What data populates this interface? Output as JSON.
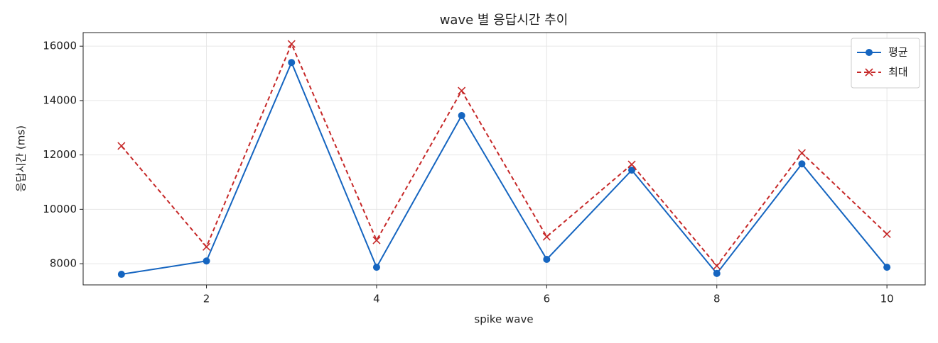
{
  "chart_data": {
    "type": "line",
    "title": "wave 별 응답시간 추이",
    "x_label": "spike wave",
    "y_label": "응답시간 (ms)",
    "x": [
      1,
      2,
      3,
      4,
      5,
      6,
      7,
      8,
      9,
      10
    ],
    "series": [
      {
        "name": "평균",
        "color": "#1565c0",
        "marker": "o",
        "dash": false,
        "values": [
          7610,
          8100,
          15400,
          7870,
          13450,
          8160,
          11440,
          7640,
          11670,
          7870
        ]
      },
      {
        "name": "최대",
        "color": "#c62828",
        "marker": "x",
        "dash": true,
        "values": [
          12330,
          8620,
          16080,
          8860,
          14360,
          8990,
          11650,
          7920,
          12070,
          9090
        ]
      }
    ],
    "xlim": [
      0.55,
      10.45
    ],
    "ylim": [
      7220,
      16500
    ],
    "xticks": [
      2,
      4,
      6,
      8,
      10
    ],
    "yticks": [
      8000,
      10000,
      12000,
      14000,
      16000
    ],
    "grid": true,
    "legend": "upper-right"
  }
}
